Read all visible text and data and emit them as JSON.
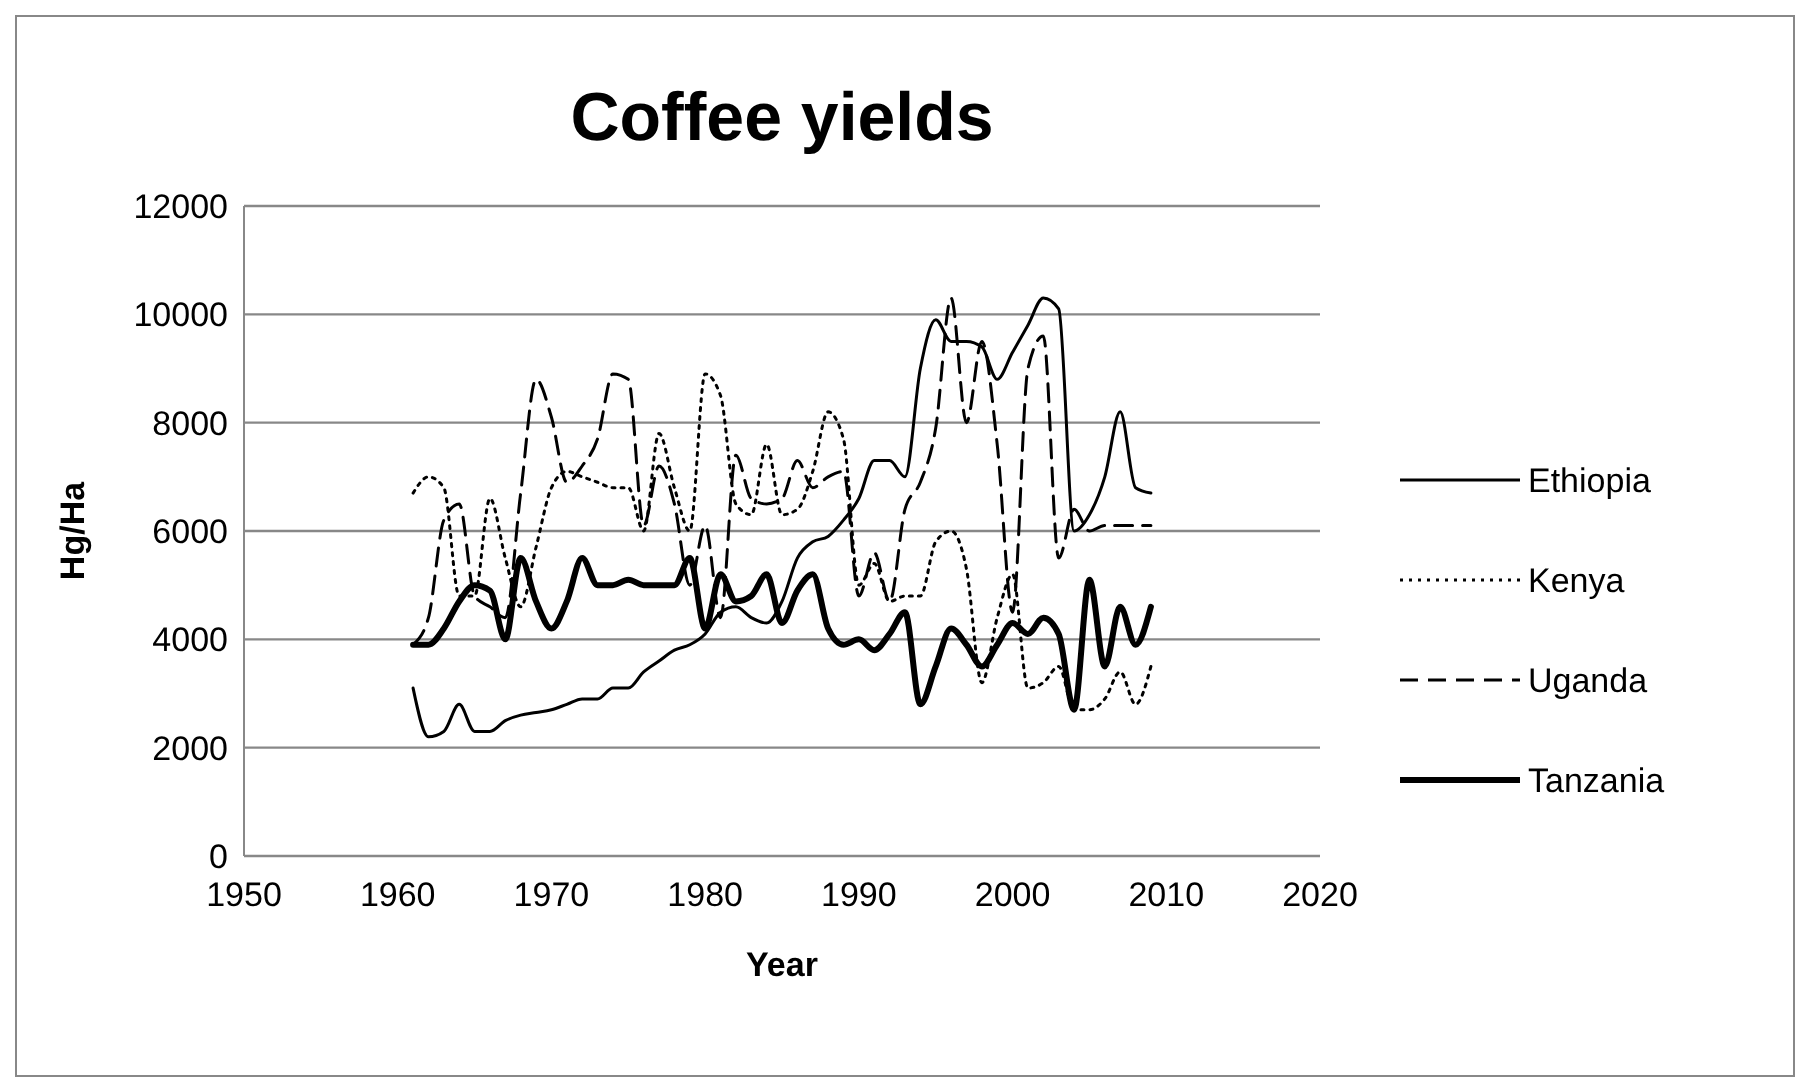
{
  "chart_data": {
    "type": "line",
    "title": "Coffee yields",
    "xlabel": "Year",
    "ylabel": "Hg/Ha",
    "xlim": [
      1950,
      2020
    ],
    "xticks": [
      1950,
      1960,
      1970,
      1980,
      1990,
      2000,
      2010,
      2020
    ],
    "ylim": [
      0,
      12000
    ],
    "yticks": [
      0,
      2000,
      4000,
      6000,
      8000,
      10000,
      12000
    ],
    "grid": "y",
    "legend": "right",
    "marker": "none",
    "x": [
      1961,
      1962,
      1963,
      1964,
      1965,
      1966,
      1967,
      1968,
      1969,
      1970,
      1971,
      1972,
      1973,
      1974,
      1975,
      1976,
      1977,
      1978,
      1979,
      1980,
      1981,
      1982,
      1983,
      1984,
      1985,
      1986,
      1987,
      1988,
      1989,
      1990,
      1991,
      1992,
      1993,
      1994,
      1995,
      1996,
      1997,
      1998,
      1999,
      2000,
      2001,
      2002,
      2003,
      2004,
      2005,
      2006,
      2007,
      2008,
      2009
    ],
    "series": [
      {
        "name": "Ethiopia",
        "color": "#000000",
        "line_style": "solid",
        "values": [
          3100,
          2200,
          2300,
          2800,
          2300,
          2300,
          2500,
          2600,
          2650,
          2700,
          2800,
          2900,
          2900,
          3100,
          3100,
          3400,
          3600,
          3800,
          3900,
          4100,
          4500,
          4600,
          4400,
          4300,
          4700,
          5500,
          5800,
          5900,
          6200,
          6600,
          7300,
          7300,
          7000,
          9000,
          9900,
          9500,
          9500,
          9400,
          8800,
          9300,
          9800,
          10300,
          10100,
          6000,
          6300,
          7000,
          8200,
          6800,
          6700
        ]
      },
      {
        "name": "Kenya",
        "color": "#000000",
        "line_style": "dotted",
        "values": [
          6700,
          7000,
          6800,
          4800,
          4800,
          6600,
          5500,
          4600,
          5700,
          6800,
          7100,
          7000,
          6900,
          6800,
          6800,
          6000,
          7800,
          6800,
          6000,
          8900,
          8500,
          6500,
          6300,
          7600,
          6300,
          6400,
          7100,
          8200,
          7700,
          5000,
          5400,
          4700,
          4800,
          4800,
          5800,
          6000,
          5300,
          3200,
          4400,
          5200,
          3100,
          3200,
          3500,
          2700,
          2700,
          2900,
          3400,
          2800,
          3500
        ]
      },
      {
        "name": "Uganda",
        "color": "#000000",
        "line_style": "dashed",
        "values": [
          3900,
          4400,
          6200,
          6500,
          4800,
          4600,
          4400,
          6700,
          8800,
          8100,
          6900,
          7200,
          7700,
          8900,
          8800,
          6100,
          7200,
          6500,
          5000,
          6100,
          4400,
          7400,
          6600,
          6500,
          6600,
          7300,
          6800,
          7000,
          7100,
          4800,
          5600,
          4700,
          6400,
          6900,
          7900,
          10300,
          8000,
          9500,
          7600,
          4500,
          9000,
          9600,
          5500,
          6400,
          6000,
          6100,
          6100,
          6100,
          6100
        ]
      },
      {
        "name": "Tanzania",
        "color": "#000000",
        "line_style": "solid",
        "values": [
          3900,
          3900,
          4200,
          4700,
          5000,
          4900,
          4000,
          5500,
          4700,
          4200,
          4700,
          5500,
          5000,
          5000,
          5100,
          5000,
          5000,
          5000,
          5500,
          4200,
          5200,
          4700,
          4800,
          5200,
          4300,
          4900,
          5200,
          4200,
          3900,
          4000,
          3800,
          4100,
          4500,
          2800,
          3500,
          4200,
          3900,
          3500,
          3900,
          4300,
          4100,
          4400,
          4100,
          2700,
          5100,
          3500,
          4600,
          3900,
          4600
        ]
      }
    ]
  }
}
